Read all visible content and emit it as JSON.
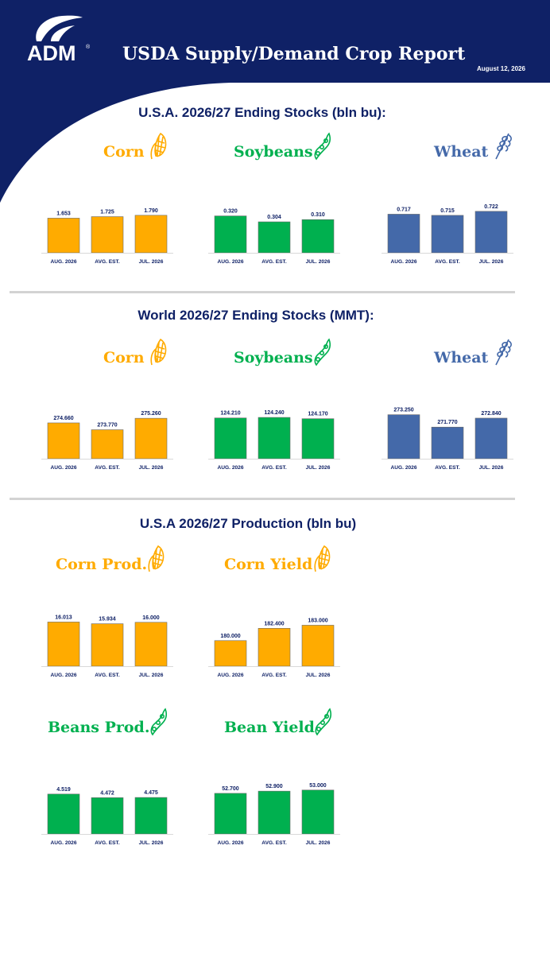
{
  "header": {
    "logo_text": "ADM",
    "logo_mark": "®",
    "title": "USDA Supply/Demand Crop Report",
    "date": "August 12, 2026"
  },
  "colors": {
    "navy": "#0f2166",
    "corn": "#ffab00",
    "soy": "#00b04f",
    "wheat": "#4469a9"
  },
  "sections": [
    {
      "title": "U.S.A. 2026/27 Ending Stocks (bln bu):",
      "charts": [
        {
          "label": "Corn",
          "icon": "corn-icon",
          "color": "#ffab00",
          "label_color": "#ffab00"
        },
        {
          "label": "Soybeans",
          "icon": "soybean-icon",
          "color": "#00b04f",
          "label_color": "#00b04f"
        },
        {
          "label": "Wheat",
          "icon": "wheat-icon",
          "color": "#4469a9",
          "label_color": "#4469a9"
        }
      ]
    },
    {
      "title": "World 2026/27 Ending Stocks (MMT):",
      "charts": [
        {
          "label": "Corn",
          "icon": "corn-icon",
          "color": "#ffab00",
          "label_color": "#ffab00"
        },
        {
          "label": "Soybeans",
          "icon": "soybean-icon",
          "color": "#00b04f",
          "label_color": "#00b04f"
        },
        {
          "label": "Wheat",
          "icon": "wheat-icon",
          "color": "#4469a9",
          "label_color": "#4469a9"
        }
      ]
    },
    {
      "title": "U.S.A 2026/27 Production (bln bu)",
      "charts": [
        {
          "label": "Corn Prod.",
          "icon": "corn-icon",
          "color": "#ffab00",
          "label_color": "#ffab00"
        },
        {
          "label": "Corn Yield",
          "icon": "corn-icon",
          "color": "#ffab00",
          "label_color": "#ffab00"
        },
        {
          "label": "Beans Prod.",
          "icon": "soybean-icon",
          "color": "#00b04f",
          "label_color": "#00b04f"
        },
        {
          "label": "Bean Yield",
          "icon": "soybean-icon",
          "color": "#00b04f",
          "label_color": "#00b04f"
        }
      ]
    }
  ],
  "chart_data": [
    {
      "type": "bar",
      "title": "Corn",
      "categories": [
        "AUG. 2026",
        "AVG. EST.",
        "JUL. 2026"
      ],
      "values": [
        1.653,
        1.725,
        1.79
      ],
      "labels": [
        "1.653",
        "1.725",
        "1.790"
      ],
      "ylim": [
        0,
        2.2
      ]
    },
    {
      "type": "bar",
      "title": "Soybeans",
      "categories": [
        "AUG. 2026",
        "AVG. EST.",
        "JUL. 2026"
      ],
      "values": [
        0.32,
        0.304,
        0.31
      ],
      "labels": [
        "0.320",
        "0.304",
        "0.310"
      ],
      "ylim": [
        0.22,
        0.345
      ]
    },
    {
      "type": "bar",
      "title": "Wheat",
      "categories": [
        "AUG. 2026",
        "AVG. EST.",
        "JUL. 2026"
      ],
      "values": [
        0.717,
        0.715,
        0.722
      ],
      "labels": [
        "0.717",
        "0.715",
        "0.722"
      ],
      "ylim": [
        0.65,
        0.73
      ]
    },
    {
      "type": "bar",
      "title": "Corn",
      "categories": [
        "AUG. 2026",
        "AVG. EST.",
        "JUL. 2026"
      ],
      "values": [
        274.66,
        273.77,
        275.26
      ],
      "labels": [
        "274.660",
        "273.770",
        "275.260"
      ],
      "ylim": [
        270,
        276
      ]
    },
    {
      "type": "bar",
      "title": "Soybeans",
      "categories": [
        "AUG. 2026",
        "AVG. EST.",
        "JUL. 2026"
      ],
      "values": [
        124.21,
        124.24,
        124.17
      ],
      "labels": [
        "124.210",
        "124.240",
        "124.170"
      ],
      "ylim": [
        122,
        124.5
      ]
    },
    {
      "type": "bar",
      "title": "Wheat",
      "categories": [
        "AUG. 2026",
        "AVG. EST.",
        "JUL. 2026"
      ],
      "values": [
        273.25,
        271.77,
        272.84
      ],
      "labels": [
        "273.250",
        "271.770",
        "272.840"
      ],
      "ylim": [
        268,
        273.5
      ]
    },
    {
      "type": "bar",
      "title": "Corn Prod.",
      "categories": [
        "AUG. 2026",
        "AVG. EST.",
        "JUL. 2026"
      ],
      "values": [
        16.013,
        15.934,
        16.0
      ],
      "labels": [
        "16.013",
        "15.934",
        "16.000"
      ],
      "ylim": [
        14,
        16.1
      ]
    },
    {
      "type": "bar",
      "title": "Corn Yield",
      "categories": [
        "AUG. 2026",
        "AVG. EST.",
        "JUL. 2026"
      ],
      "values": [
        180.0,
        182.4,
        183.0
      ],
      "labels": [
        "180.000",
        "182.400",
        "183.000"
      ],
      "ylim": [
        175,
        184
      ]
    },
    {
      "type": "bar",
      "title": "Beans Prod.",
      "categories": [
        "AUG. 2026",
        "AVG. EST.",
        "JUL. 2026"
      ],
      "values": [
        4.519,
        4.472,
        4.475
      ],
      "labels": [
        "4.519",
        "4.472",
        "4.475"
      ],
      "ylim": [
        4.0,
        4.6
      ]
    },
    {
      "type": "bar",
      "title": "Bean Yield",
      "categories": [
        "AUG. 2026",
        "AVG. EST.",
        "JUL. 2026"
      ],
      "values": [
        52.7,
        52.9,
        53.0
      ],
      "labels": [
        "52.700",
        "52.900",
        "53.000"
      ],
      "ylim": [
        49,
        53.2
      ]
    }
  ]
}
